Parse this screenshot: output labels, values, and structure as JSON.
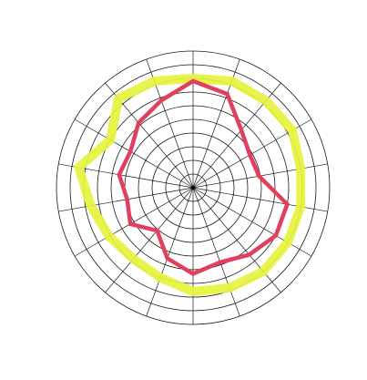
{
  "chart_data": {
    "type": "radar",
    "title": "",
    "categories": [
      "",
      "",
      "",
      "",
      "",
      "",
      "",
      "",
      "",
      "",
      "",
      "",
      "",
      "",
      "",
      "",
      "",
      ""
    ],
    "rlim": [
      0,
      10
    ],
    "grid": true,
    "series": [
      {
        "color": "#e6f23c",
        "values": [
          8.0,
          8.3,
          8.3,
          8.4,
          8.0,
          8.0,
          8.0,
          8.0,
          7.8,
          7.6,
          7.0,
          6.8,
          7.1,
          7.6,
          8.5,
          7.0,
          8.5,
          8.3
        ]
      },
      {
        "color": "#e0405e",
        "values": [
          7.8,
          7.3,
          5.5,
          4.8,
          4.9,
          7.0,
          7.0,
          6.4,
          5.8,
          6.3,
          5.5,
          4.1,
          5.3,
          4.9,
          5.5,
          5.3,
          6.2,
          6.8
        ]
      }
    ]
  }
}
